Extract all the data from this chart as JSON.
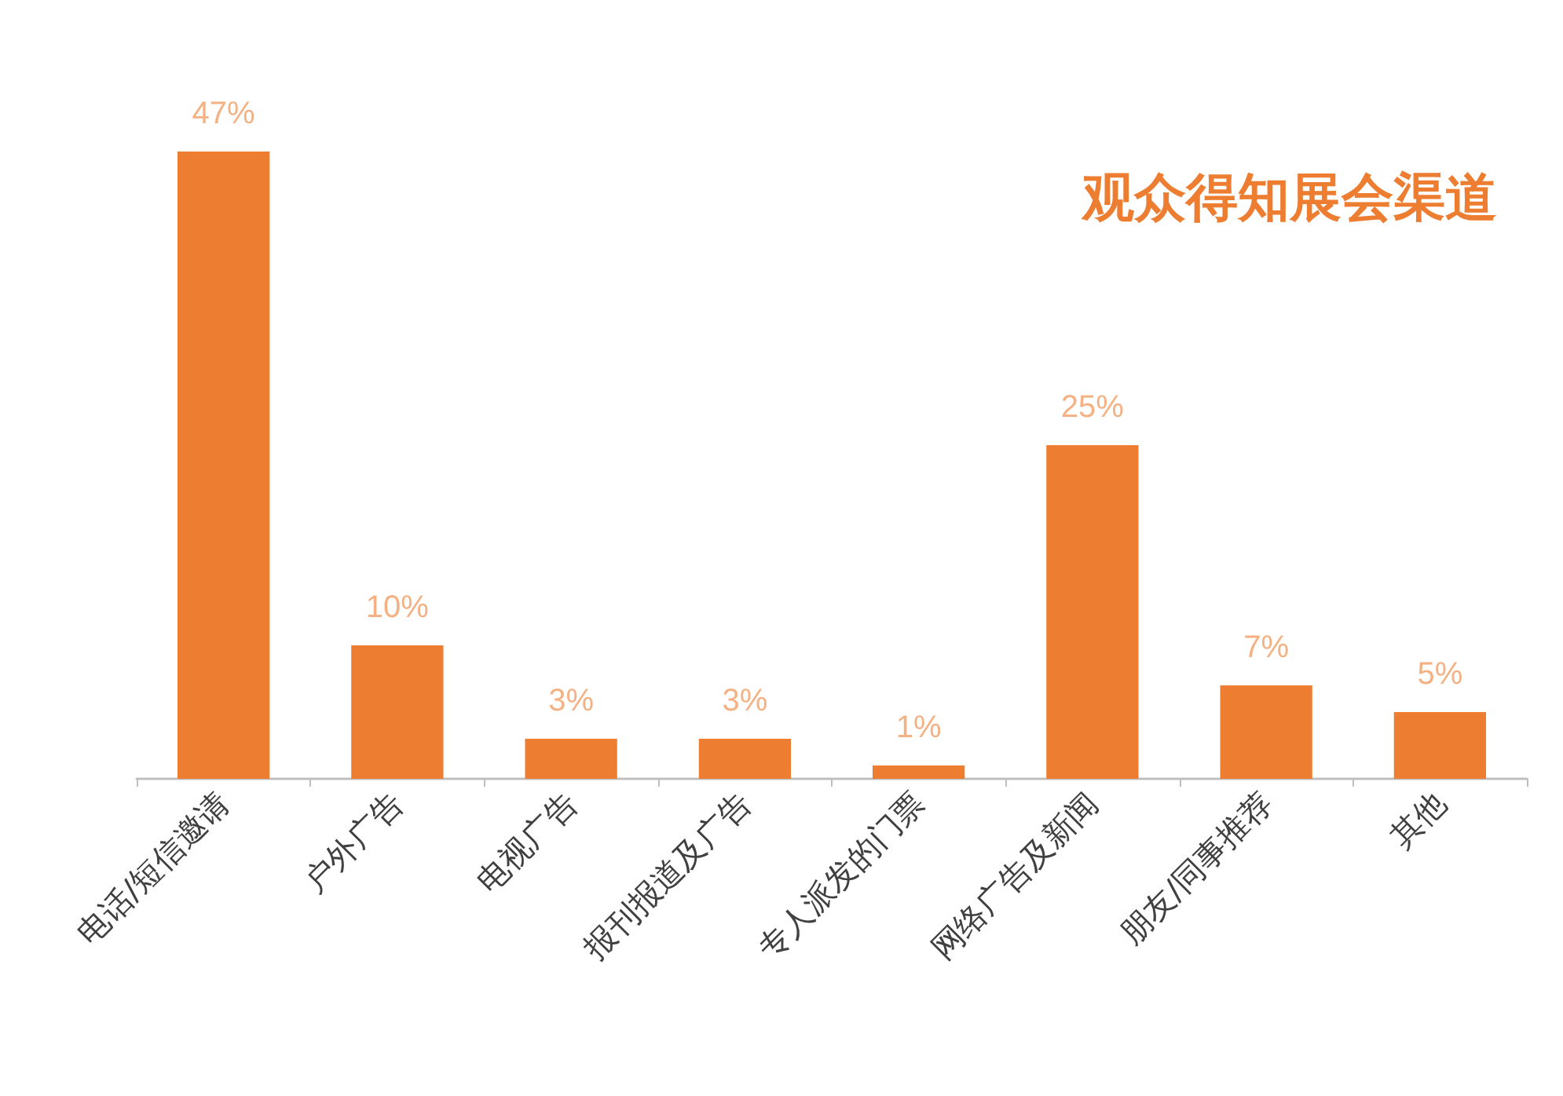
{
  "chart_data": {
    "type": "bar",
    "title": "观众得知展会渠道",
    "categories": [
      "电话/短信邀请",
      "户外广告",
      "电视广告",
      "报刊报道及广告",
      "专人派发的门票",
      "网络广告及新闻",
      "朋友/同事推荐",
      "其他"
    ],
    "values": [
      47,
      10,
      3,
      3,
      1,
      25,
      7,
      5
    ],
    "value_labels": [
      "47%",
      "10%",
      "3%",
      "3%",
      "1%",
      "25%",
      "7%",
      "5%"
    ],
    "color": "#ed7d31",
    "tick_labels": "x"
  }
}
